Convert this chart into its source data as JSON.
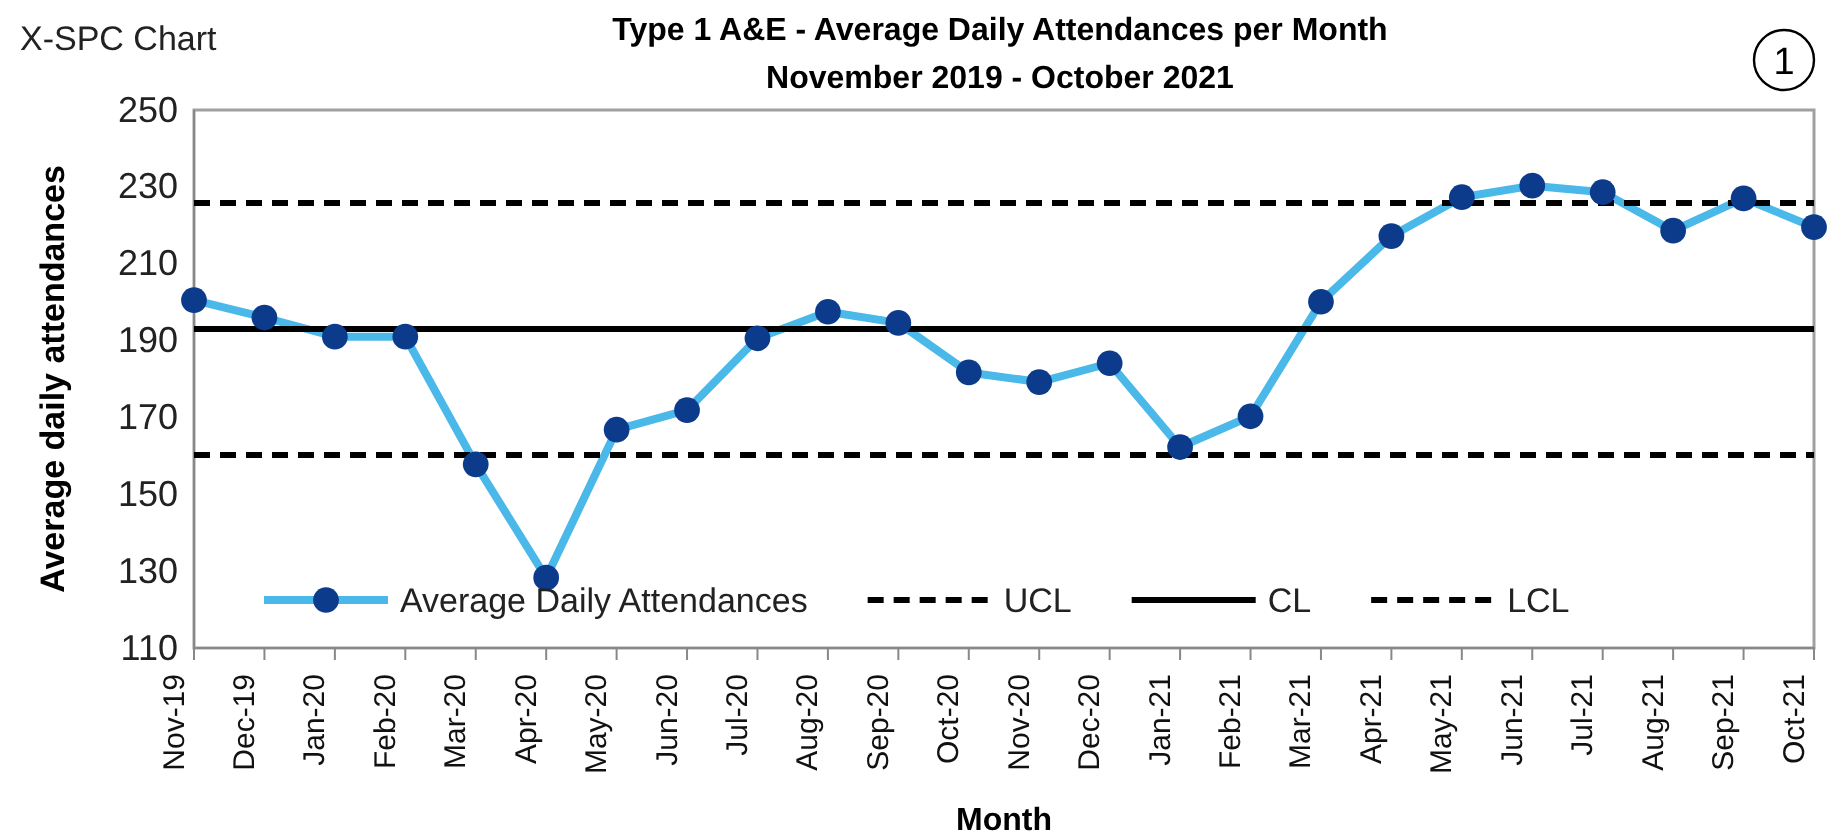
{
  "chart_data": {
    "type": "line",
    "title": "Type 1 A&E - Average Daily Attendances per Month",
    "subtitle": "November 2019 - October 2021",
    "xlabel": "Month",
    "ylabel": "Average daily attendances",
    "annotations": [
      "X-SPC Chart",
      "1"
    ],
    "categories": [
      "Nov-19",
      "Dec-19",
      "Jan-20",
      "Feb-20",
      "Mar-20",
      "Apr-20",
      "May-20",
      "Jun-20",
      "Jul-20",
      "Aug-20",
      "Sep-20",
      "Oct-20",
      "Nov-20",
      "Dec-20",
      "Jan-21",
      "Feb-21",
      "Mar-21",
      "Apr-21",
      "May-21",
      "Jun-21",
      "Jul-21",
      "Aug-21",
      "Sep-21",
      "Oct-21"
    ],
    "series": [
      {
        "name": "Average Daily Attendances",
        "color": "#4ab8e8",
        "marker": "circle",
        "line_style": "solid",
        "values": [
          200.5,
          196,
          191,
          191,
          157.8,
          128.3,
          166.8,
          171.9,
          190.6,
          197.5,
          194.6,
          181.7,
          179.2,
          184.1,
          162.3,
          170.3,
          200.1,
          217.2,
          227.3,
          230.3,
          228.6,
          218.6,
          227,
          219.5
        ]
      },
      {
        "name": "UCL",
        "color": "#000000",
        "marker": "none",
        "line_style": "dashed",
        "values": [
          225.8,
          225.8,
          225.8,
          225.8,
          225.8,
          225.8,
          225.8,
          225.8,
          225.8,
          225.8,
          225.8,
          225.8,
          225.8,
          225.8,
          225.8,
          225.8,
          225.8,
          225.8,
          225.8,
          225.8,
          225.8,
          225.8,
          225.8,
          225.8
        ]
      },
      {
        "name": "CL",
        "color": "#000000",
        "marker": "none",
        "line_style": "solid",
        "values": [
          193,
          193,
          193,
          193,
          193,
          193,
          193,
          193,
          193,
          193,
          193,
          193,
          193,
          193,
          193,
          193,
          193,
          193,
          193,
          193,
          193,
          193,
          193,
          193
        ]
      },
      {
        "name": "LCL",
        "color": "#000000",
        "marker": "none",
        "line_style": "dashed",
        "values": [
          160.2,
          160.2,
          160.2,
          160.2,
          160.2,
          160.2,
          160.2,
          160.2,
          160.2,
          160.2,
          160.2,
          160.2,
          160.2,
          160.2,
          160.2,
          160.2,
          160.2,
          160.2,
          160.2,
          160.2,
          160.2,
          160.2,
          160.2,
          160.2
        ]
      }
    ],
    "ylim": [
      110,
      250
    ],
    "yticks": [
      110,
      130,
      150,
      170,
      190,
      210,
      230,
      250
    ],
    "grid": false,
    "legend": "bottom"
  }
}
